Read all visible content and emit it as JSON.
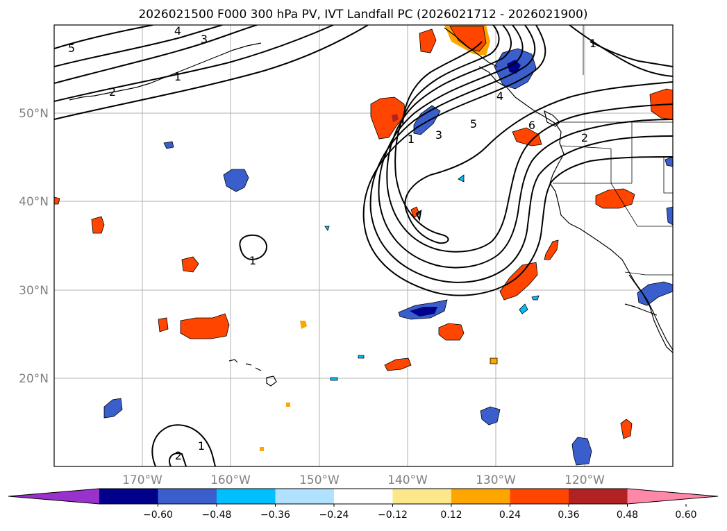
{
  "title": "2026021500 F000 300 hPa PV, IVT Landfall PC (2026021712 - 2026021900)",
  "latitude_labels": [
    "50°N",
    "40°N",
    "30°N",
    "20°N"
  ],
  "longitude_labels": [
    "170°W",
    "160°W",
    "150°W",
    "140°W",
    "130°W",
    "120°W"
  ],
  "colorbar": {
    "tick_labels": [
      "−0.60",
      "−0.48",
      "−0.36",
      "−0.24",
      "−0.12",
      "0.12",
      "0.24",
      "0.36",
      "0.48",
      "0.60"
    ],
    "colors": [
      "#9932cc",
      "#00008b",
      "#3a5fcd",
      "#00bfff",
      "#b0e2ff",
      "#ffffff",
      "#fce78a",
      "#ffa500",
      "#ff4500",
      "#b22222",
      "#ff88a8"
    ]
  },
  "chart_data": {
    "type": "map",
    "projection": "PlateCarree",
    "extent": {
      "lon": [
        -180,
        -110
      ],
      "lat": [
        10,
        60
      ]
    },
    "pv_contour_labels": [
      "5",
      "4",
      "3",
      "2",
      "1",
      "1",
      "5",
      "3",
      "4",
      "1",
      "2",
      "6",
      "1",
      "1",
      "2"
    ],
    "ivt_anomaly_field": "shaded regions (values from −0.60 to 0.60)"
  }
}
